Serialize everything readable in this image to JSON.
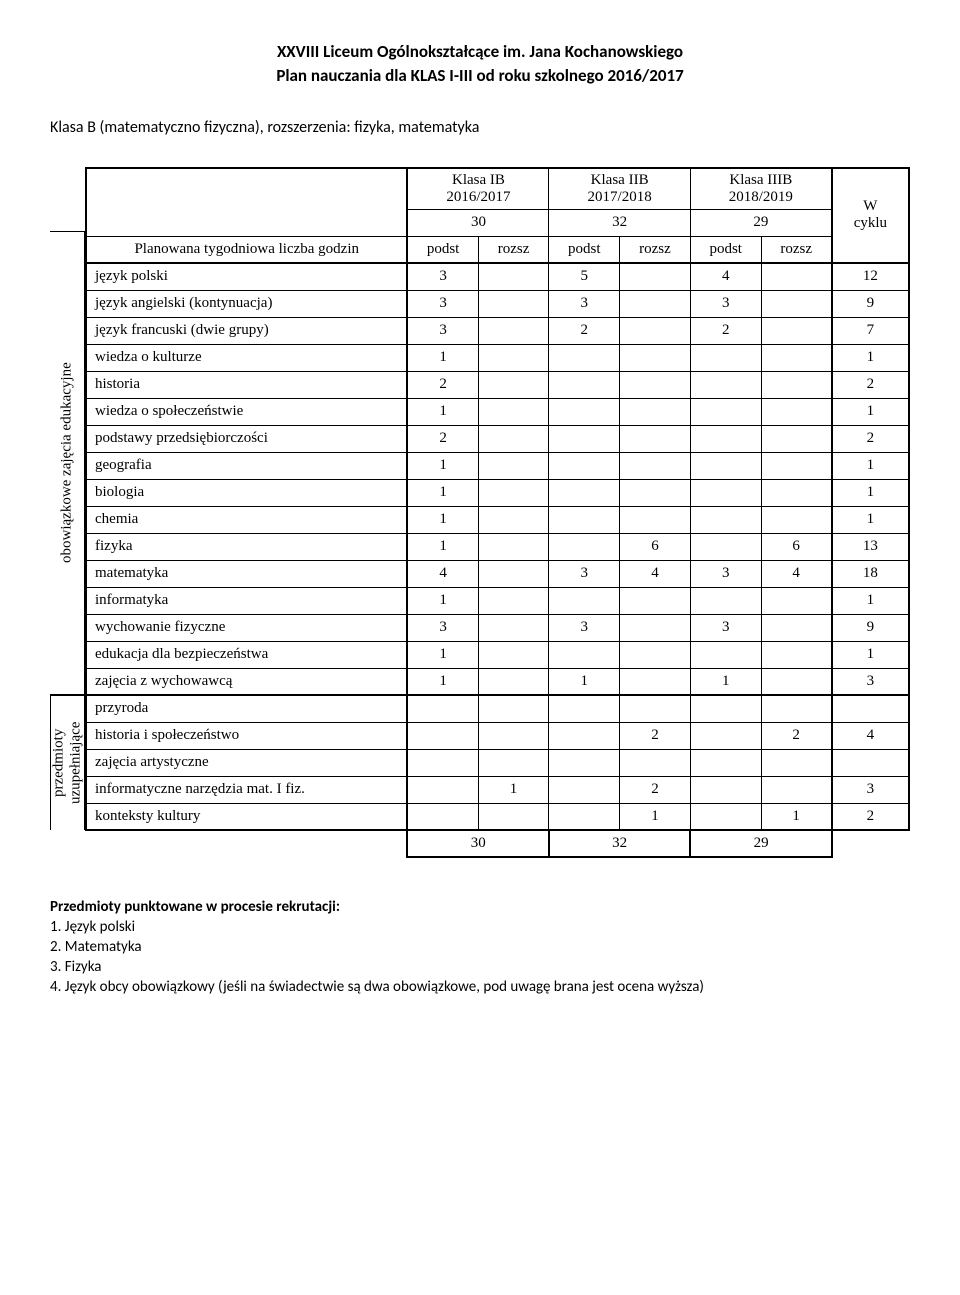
{
  "header": {
    "line1": "XXVIII Liceum Ogólnokształcące im. Jana Kochanowskiego",
    "line2": "Plan nauczania dla KLAS I-III od roku szkolnego 2016/2017"
  },
  "subheader": "Klasa B (matematyczno fizyczna), rozszerzenia: fizyka, matematyka",
  "table": {
    "planned_label": "Planowana tygodniowa liczba godzin",
    "side_label_1": "obowiązkowe zajęcia edukacyjne",
    "side_label_2": "przedmioty uzupełniające",
    "cycle_label": "W cyklu",
    "class_headers": [
      {
        "name": "Klasa IB",
        "year": "2016/2017",
        "total": "30"
      },
      {
        "name": "Klasa IIB",
        "year": "2017/2018",
        "total": "32"
      },
      {
        "name": "Klasa IIIB",
        "year": "2018/2019",
        "total": "29"
      }
    ],
    "sub_cols": [
      "podst",
      "rozsz"
    ],
    "rows_main": [
      {
        "label": "język polski",
        "v": [
          "3",
          "",
          "5",
          "",
          "4",
          ""
        ],
        "cyc": "12"
      },
      {
        "label": "język angielski (kontynuacja)",
        "v": [
          "3",
          "",
          "3",
          "",
          "3",
          ""
        ],
        "cyc": "9"
      },
      {
        "label": "język francuski (dwie grupy)",
        "v": [
          "3",
          "",
          "2",
          "",
          "2",
          ""
        ],
        "cyc": "7"
      },
      {
        "label": "wiedza o kulturze",
        "v": [
          "1",
          "",
          "",
          "",
          "",
          ""
        ],
        "cyc": "1"
      },
      {
        "label": "historia",
        "v": [
          "2",
          "",
          "",
          "",
          "",
          ""
        ],
        "cyc": "2"
      },
      {
        "label": "wiedza o społeczeństwie",
        "v": [
          "1",
          "",
          "",
          "",
          "",
          ""
        ],
        "cyc": "1"
      },
      {
        "label": "podstawy przedsiębiorczości",
        "v": [
          "2",
          "",
          "",
          "",
          "",
          ""
        ],
        "cyc": "2"
      },
      {
        "label": "geografia",
        "v": [
          "1",
          "",
          "",
          "",
          "",
          ""
        ],
        "cyc": "1"
      },
      {
        "label": "biologia",
        "v": [
          "1",
          "",
          "",
          "",
          "",
          ""
        ],
        "cyc": "1"
      },
      {
        "label": "chemia",
        "v": [
          "1",
          "",
          "",
          "",
          "",
          ""
        ],
        "cyc": "1"
      },
      {
        "label": "fizyka",
        "v": [
          "1",
          "",
          "",
          "6",
          "",
          "6"
        ],
        "cyc": "13"
      },
      {
        "label": "matematyka",
        "v": [
          "4",
          "",
          "3",
          "4",
          "3",
          "4"
        ],
        "cyc": "18"
      },
      {
        "label": "informatyka",
        "v": [
          "1",
          "",
          "",
          "",
          "",
          ""
        ],
        "cyc": "1"
      },
      {
        "label": "wychowanie fizyczne",
        "v": [
          "3",
          "",
          "3",
          "",
          "3",
          ""
        ],
        "cyc": "9"
      },
      {
        "label": "edukacja dla bezpieczeństwa",
        "v": [
          "1",
          "",
          "",
          "",
          "",
          ""
        ],
        "cyc": "1"
      },
      {
        "label": "zajęcia z wychowawcą",
        "v": [
          "1",
          "",
          "1",
          "",
          "1",
          ""
        ],
        "cyc": "3"
      }
    ],
    "rows_supp": [
      {
        "label": "przyroda",
        "v": [
          "",
          "",
          "",
          "",
          "",
          ""
        ],
        "cyc": ""
      },
      {
        "label": "historia i społeczeństwo",
        "v": [
          "",
          "",
          "",
          "2",
          "",
          "2"
        ],
        "cyc": "4"
      },
      {
        "label": "zajęcia artystyczne",
        "v": [
          "",
          "",
          "",
          "",
          "",
          ""
        ],
        "cyc": ""
      },
      {
        "label": "informatyczne narzędzia mat. I fiz.",
        "v": [
          "",
          "1",
          "",
          "2",
          "",
          ""
        ],
        "cyc": "3"
      },
      {
        "label": "konteksty kultury",
        "v": [
          "",
          "",
          "",
          "1",
          "",
          "1"
        ],
        "cyc": "2"
      }
    ],
    "totals": [
      "30",
      "32",
      "29"
    ]
  },
  "footer": {
    "title": "Przedmioty punktowane w procesie rekrutacji:",
    "items": [
      "1. Język polski",
      "2. Matematyka",
      "3. Fizyka",
      "4. Język obcy obowiązkowy (jeśli na świadectwie są dwa obowiązkowe, pod uwagę brana jest ocena wyższa)"
    ]
  },
  "style": {
    "background": "#ffffff",
    "text_color": "#000000",
    "border_color": "#000000",
    "font_body": "Times New Roman",
    "font_header": "Calibri",
    "font_size_body": 15,
    "font_size_header": 17
  }
}
